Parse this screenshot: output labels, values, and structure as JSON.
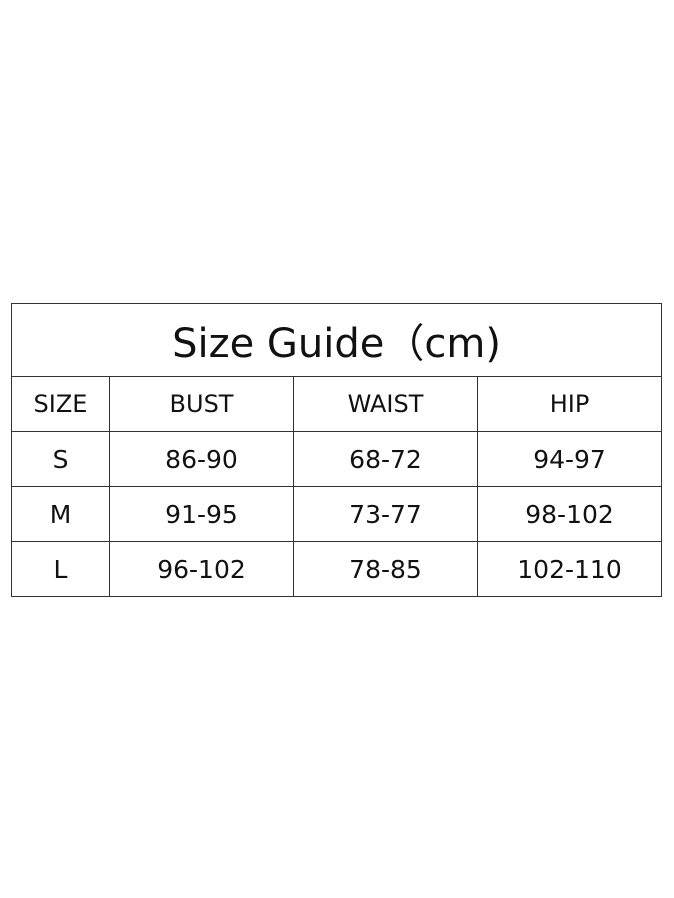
{
  "title": "Size Guide（cm)",
  "headers": [
    "SIZE",
    "BUST",
    "WAIST",
    "HIP"
  ],
  "rows": [
    [
      "S",
      "86-90",
      "68-72",
      "94-97"
    ],
    [
      "M",
      "91-95",
      "73-77",
      "98-102"
    ],
    [
      "L",
      "96-102",
      "78-85",
      "102-110"
    ]
  ]
}
